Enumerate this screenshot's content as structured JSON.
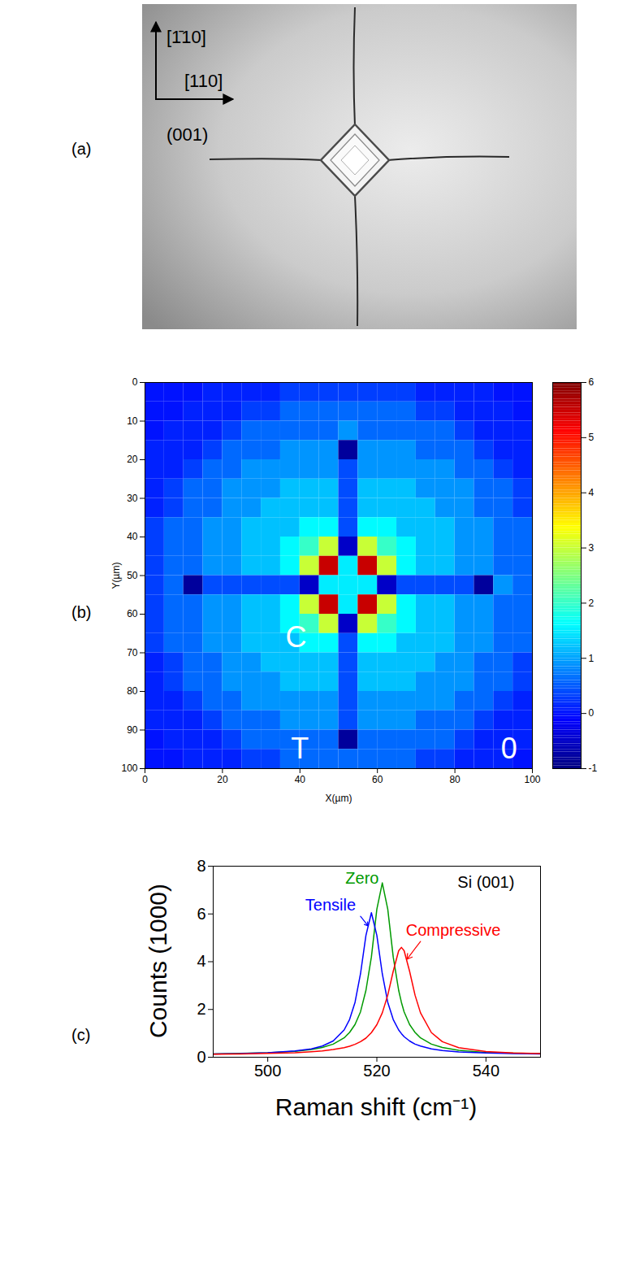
{
  "figure": {
    "panel_a": {
      "letter": "(a)",
      "directions": {
        "up": "[1̄10]",
        "right": "[110]"
      },
      "plane": "(001)"
    }
  },
  "chart_data": [
    {
      "panel": "(b)",
      "type": "heatmap",
      "xlabel": "X(µm)",
      "ylabel": "Y(µm)",
      "x": [
        2.5,
        7.5,
        12.5,
        17.5,
        22.5,
        27.5,
        32.5,
        37.5,
        42.5,
        47.5,
        52.5,
        57.5,
        62.5,
        67.5,
        72.5,
        77.5,
        82.5,
        87.5,
        92.5,
        97.5
      ],
      "y": [
        2.5,
        7.5,
        12.5,
        17.5,
        22.5,
        27.5,
        32.5,
        37.5,
        42.5,
        47.5,
        52.5,
        57.5,
        62.5,
        67.5,
        72.5,
        77.5,
        82.5,
        87.5,
        92.5,
        97.5
      ],
      "z": [
        [
          0,
          0,
          0,
          0.1,
          0.1,
          0.1,
          0.1,
          0.3,
          0.3,
          0.3,
          0.3,
          0.3,
          0.3,
          0.3,
          0.1,
          0.1,
          0.1,
          0.1,
          0,
          0
        ],
        [
          0,
          0,
          0.1,
          0.1,
          0.1,
          0.3,
          0.3,
          0.6,
          0.6,
          0.6,
          0.6,
          0.6,
          0.6,
          0.6,
          0.3,
          0.3,
          0.1,
          0.1,
          0.1,
          0
        ],
        [
          0,
          0.1,
          0.1,
          0.1,
          0.3,
          0.6,
          0.6,
          0.6,
          0.6,
          0.6,
          0.9,
          0.6,
          0.6,
          0.6,
          0.6,
          0.6,
          0.3,
          0.1,
          0.1,
          0.1
        ],
        [
          0.1,
          0.1,
          0.1,
          0.3,
          0.6,
          0.6,
          0.6,
          0.9,
          0.9,
          0.9,
          -0.8,
          0.9,
          0.9,
          0.9,
          0.6,
          0.6,
          0.6,
          0.3,
          0.1,
          0.1
        ],
        [
          0.1,
          0.1,
          0.3,
          0.6,
          0.6,
          0.9,
          0.9,
          0.9,
          0.9,
          0.9,
          0.4,
          0.9,
          0.9,
          0.9,
          0.9,
          0.9,
          0.6,
          0.6,
          0.3,
          0.1
        ],
        [
          0.1,
          0.3,
          0.6,
          0.6,
          0.9,
          0.9,
          0.9,
          1.2,
          1.2,
          1.2,
          0.4,
          1.2,
          1.2,
          1.2,
          0.9,
          0.9,
          0.9,
          0.6,
          0.6,
          0.3
        ],
        [
          0.1,
          0.3,
          0.6,
          0.6,
          0.9,
          0.9,
          1.2,
          1.2,
          1.2,
          1.2,
          0.4,
          1.2,
          1.2,
          1.2,
          1.2,
          0.9,
          0.9,
          0.6,
          0.6,
          0.3
        ],
        [
          0.3,
          0.6,
          0.6,
          0.9,
          0.9,
          1.2,
          1.2,
          1.2,
          1.6,
          1.6,
          0.4,
          1.6,
          1.6,
          1.2,
          1.2,
          1.2,
          0.9,
          0.9,
          0.6,
          0.6
        ],
        [
          0.3,
          0.6,
          0.6,
          0.9,
          0.9,
          1.2,
          1.2,
          1.6,
          2,
          3,
          -0.5,
          3,
          2,
          1.6,
          1.2,
          1.2,
          0.9,
          0.9,
          0.6,
          0.6
        ],
        [
          0.3,
          0.6,
          0.6,
          0.9,
          0.9,
          1.2,
          1.2,
          1.6,
          3,
          5.5,
          1.5,
          5.5,
          3,
          1.6,
          1.2,
          1.2,
          0.9,
          0.9,
          0.6,
          0.6
        ],
        [
          0.3,
          0.6,
          -0.8,
          0.4,
          0.4,
          0.4,
          0.4,
          0.4,
          -0.5,
          1.5,
          1.5,
          1.5,
          -0.5,
          0.4,
          0.4,
          0.4,
          0.4,
          -0.8,
          0.9,
          0.6
        ],
        [
          0.3,
          0.6,
          0.6,
          0.9,
          0.9,
          1.2,
          1.2,
          1.6,
          3,
          5.5,
          1.5,
          5.5,
          3,
          1.6,
          1.2,
          1.2,
          0.9,
          0.9,
          0.6,
          0.6
        ],
        [
          0.3,
          0.6,
          0.6,
          0.9,
          0.9,
          1.2,
          1.2,
          1.6,
          2,
          3,
          -0.5,
          3,
          2,
          1.6,
          1.2,
          1.2,
          0.9,
          0.9,
          0.6,
          0.6
        ],
        [
          0.3,
          0.6,
          0.6,
          0.9,
          0.9,
          1.2,
          1.2,
          1.2,
          1.6,
          1.6,
          0.4,
          1.6,
          1.6,
          1.2,
          1.2,
          1.2,
          0.9,
          0.9,
          0.6,
          0.6
        ],
        [
          0.1,
          0.3,
          0.6,
          0.6,
          0.9,
          0.9,
          1.2,
          1.2,
          1.2,
          1.2,
          0.4,
          1.2,
          1.2,
          1.2,
          1.2,
          0.9,
          0.9,
          0.6,
          0.6,
          0.3
        ],
        [
          0.1,
          0.3,
          0.6,
          0.6,
          0.9,
          0.9,
          0.9,
          1.2,
          1.2,
          1.2,
          0.4,
          1.2,
          1.2,
          1.2,
          0.9,
          0.9,
          0.9,
          0.6,
          0.6,
          0.3
        ],
        [
          0.1,
          0.1,
          0.3,
          0.6,
          0.6,
          0.9,
          0.9,
          0.9,
          0.9,
          0.9,
          0.4,
          0.9,
          0.9,
          0.9,
          0.9,
          0.9,
          0.6,
          0.6,
          0.3,
          0.1
        ],
        [
          0.1,
          0.1,
          0.1,
          0.3,
          0.6,
          0.6,
          0.6,
          0.9,
          0.9,
          0.9,
          0.4,
          0.9,
          0.9,
          0.9,
          0.6,
          0.6,
          0.6,
          0.3,
          0.1,
          0.1
        ],
        [
          0,
          0.1,
          0.1,
          0.1,
          0.3,
          0.6,
          0.6,
          0.6,
          0.6,
          0.6,
          -0.8,
          0.6,
          0.6,
          0.6,
          0.6,
          0.6,
          0.3,
          0.1,
          0.1,
          0.1
        ],
        [
          0,
          0,
          0.1,
          0.1,
          0.1,
          0.3,
          0.3,
          0.6,
          0.6,
          0.6,
          0.6,
          0.6,
          0.6,
          0.6,
          0.3,
          0.3,
          0.1,
          0.1,
          0.1,
          0
        ]
      ],
      "xlim": [
        0,
        100
      ],
      "ylim": [
        100,
        0
      ],
      "xticks": [
        0,
        20,
        40,
        60,
        80,
        100
      ],
      "yticks": [
        0,
        10,
        20,
        30,
        40,
        50,
        60,
        70,
        80,
        90,
        100
      ],
      "colorbar": {
        "lim": [
          -1,
          6
        ],
        "ticks": [
          -1,
          0,
          1,
          2,
          3,
          4,
          5,
          6
        ]
      },
      "annotations": [
        {
          "text": "C",
          "x": 39,
          "y": 66
        },
        {
          "text": "T",
          "x": 40,
          "y": 95
        },
        {
          "text": "0",
          "x": 94,
          "y": 95
        }
      ]
    },
    {
      "panel": "(c)",
      "type": "line",
      "xlabel": "Raman shift (cm⁻¹)",
      "ylabel": "Counts (1000)",
      "x": [
        490,
        495,
        500,
        505,
        508,
        510,
        512,
        514,
        515,
        516,
        517,
        518,
        519,
        520,
        521,
        522,
        523,
        524,
        524.5,
        525,
        526,
        527,
        528,
        530,
        532,
        535,
        540,
        545,
        550
      ],
      "series": [
        {
          "name": "Zero",
          "color": "#009a00",
          "values": [
            0.14,
            0.16,
            0.19,
            0.25,
            0.32,
            0.41,
            0.55,
            0.81,
            1.04,
            1.37,
            1.9,
            2.8,
            4.2,
            6.2,
            7.3,
            6.2,
            4.2,
            2.8,
            2.3,
            1.9,
            1.37,
            1.04,
            0.81,
            0.55,
            0.41,
            0.29,
            0.2,
            0.17,
            0.15
          ],
          "label": {
            "x": 517.3,
            "y": 7.5
          }
        },
        {
          "name": "Tensile",
          "color": "#0000ff",
          "values": [
            0.14,
            0.15,
            0.19,
            0.26,
            0.35,
            0.47,
            0.68,
            1.14,
            1.58,
            2.3,
            3.49,
            5.1,
            6.05,
            5.1,
            3.49,
            2.3,
            1.58,
            1.14,
            0.99,
            0.86,
            0.68,
            0.55,
            0.47,
            0.35,
            0.28,
            0.22,
            0.18,
            0.15,
            0.14
          ],
          "label": {
            "x": 511.5,
            "y": 6.35,
            "arrow": [
              517,
              5.9,
              518.4,
              5.5
            ]
          }
        },
        {
          "name": "Compressive",
          "color": "#ff0000",
          "values": [
            0.13,
            0.14,
            0.16,
            0.19,
            0.23,
            0.26,
            0.32,
            0.4,
            0.46,
            0.54,
            0.65,
            0.8,
            1.03,
            1.36,
            1.86,
            2.6,
            3.6,
            4.46,
            4.6,
            4.46,
            3.6,
            2.6,
            1.86,
            1.03,
            0.65,
            0.4,
            0.24,
            0.18,
            0.15
          ],
          "label": {
            "x": 534,
            "y": 5.3,
            "arrow": [
              528,
              4.85,
              525.5,
              4.1
            ]
          }
        }
      ],
      "xlim": [
        490,
        550
      ],
      "ylim": [
        0,
        8
      ],
      "xticks": [
        500,
        520,
        540
      ],
      "yticks": [
        0,
        2,
        4,
        6,
        8
      ],
      "annotations": [
        {
          "text": "Si (001)",
          "x": 540,
          "y": 7.3
        }
      ]
    }
  ]
}
